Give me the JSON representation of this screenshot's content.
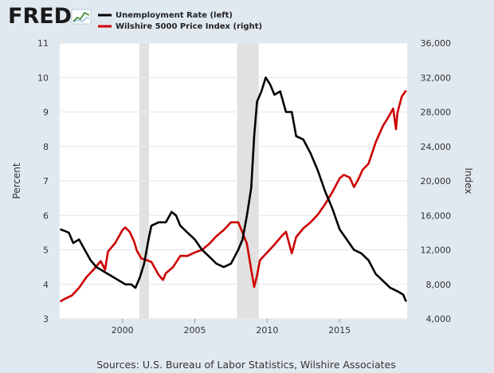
{
  "logo": {
    "text": "FRED"
  },
  "source": "Sources: U.S. Bureau of Labor Statistics, Wilshire Associates",
  "colors": {
    "background": "#e1e9f0",
    "plot": "#ffffff",
    "recession": "#e1e1e1",
    "unrate": "#000000",
    "wilshire": "#cc0000"
  },
  "chart_data": {
    "type": "line",
    "xlabel": "",
    "ylabel_left": "Percent",
    "ylabel_right": "Index",
    "x_range": [
      1995.67,
      2019.67
    ],
    "ylim_left": [
      3,
      11
    ],
    "ylim_right": [
      4000,
      36000
    ],
    "x_ticks": [
      "2000",
      "2005",
      "2010",
      "2015"
    ],
    "y_ticks_left": [
      "3",
      "4",
      "5",
      "6",
      "7",
      "8",
      "9",
      "10",
      "11"
    ],
    "y_ticks_right": [
      "4,000",
      "8,000",
      "12,000",
      "16,000",
      "20,000",
      "24,000",
      "28,000",
      "32,000",
      "36,000"
    ],
    "grid": true,
    "legend_position": "top",
    "recessions": [
      [
        2001.17,
        2001.83
      ],
      [
        2007.92,
        2009.42
      ]
    ],
    "series": [
      {
        "name": "Unemployment Rate (left)",
        "axis": "left",
        "color": "#000000",
        "x": [
          1995.7,
          1996.0,
          1996.3,
          1996.6,
          1997.0,
          1997.4,
          1997.8,
          1998.2,
          1998.6,
          1999.0,
          1999.4,
          1999.8,
          2000.2,
          2000.6,
          2000.9,
          2001.2,
          2001.5,
          2001.8,
          2002.0,
          2002.5,
          2003.0,
          2003.4,
          2003.7,
          2004.0,
          2004.5,
          2005.0,
          2005.5,
          2006.0,
          2006.5,
          2007.0,
          2007.5,
          2008.0,
          2008.3,
          2008.6,
          2008.9,
          2009.1,
          2009.3,
          2009.6,
          2009.9,
          2010.2,
          2010.5,
          2010.9,
          2011.3,
          2011.7,
          2012.0,
          2012.5,
          2013.0,
          2013.5,
          2014.0,
          2014.5,
          2015.0,
          2015.5,
          2016.0,
          2016.5,
          2017.0,
          2017.5,
          2018.0,
          2018.5,
          2019.0,
          2019.4,
          2019.6
        ],
        "y": [
          5.6,
          5.55,
          5.5,
          5.2,
          5.3,
          5.0,
          4.7,
          4.5,
          4.4,
          4.3,
          4.2,
          4.1,
          4.0,
          4.0,
          3.9,
          4.2,
          4.6,
          5.3,
          5.7,
          5.8,
          5.8,
          6.1,
          6.0,
          5.7,
          5.5,
          5.3,
          5.0,
          4.8,
          4.6,
          4.5,
          4.6,
          5.0,
          5.3,
          6.0,
          6.8,
          8.3,
          9.3,
          9.6,
          10.0,
          9.8,
          9.5,
          9.6,
          9.0,
          9.0,
          8.3,
          8.2,
          7.8,
          7.3,
          6.7,
          6.2,
          5.6,
          5.3,
          5.0,
          4.9,
          4.7,
          4.3,
          4.1,
          3.9,
          3.8,
          3.7,
          3.5
        ]
      },
      {
        "name": "Wilshire 5000 Price Index (right)",
        "axis": "right",
        "color": "#cc0000",
        "x": [
          1995.7,
          1996.0,
          1996.5,
          1997.0,
          1997.5,
          1998.0,
          1998.5,
          1998.8,
          1999.0,
          1999.5,
          2000.0,
          2000.2,
          2000.5,
          2000.8,
          2001.0,
          2001.3,
          2001.7,
          2002.0,
          2002.5,
          2002.8,
          2003.0,
          2003.5,
          2004.0,
          2004.5,
          2005.0,
          2005.5,
          2006.0,
          2006.5,
          2007.0,
          2007.5,
          2007.8,
          2008.0,
          2008.3,
          2008.6,
          2008.9,
          2009.1,
          2009.3,
          2009.5,
          2010.0,
          2010.5,
          2011.0,
          2011.3,
          2011.7,
          2012.0,
          2012.5,
          2013.0,
          2013.5,
          2014.0,
          2014.5,
          2015.0,
          2015.3,
          2015.7,
          2016.0,
          2016.3,
          2016.6,
          2017.0,
          2017.5,
          2018.0,
          2018.3,
          2018.7,
          2018.9,
          2019.0,
          2019.3,
          2019.6
        ],
        "y": [
          6000,
          6300,
          6700,
          7600,
          8800,
          9700,
          10700,
          9700,
          11800,
          12800,
          14300,
          14600,
          14100,
          13000,
          11900,
          11000,
          10800,
          10600,
          9100,
          8500,
          9300,
          10000,
          11300,
          11300,
          11700,
          12000,
          12700,
          13600,
          14300,
          15200,
          15200,
          15200,
          14000,
          12700,
          9700,
          7700,
          9000,
          10800,
          11700,
          12600,
          13600,
          14100,
          11600,
          13500,
          14500,
          15200,
          16100,
          17300,
          18700,
          20300,
          20700,
          20400,
          19300,
          20200,
          21300,
          22000,
          24500,
          26400,
          27200,
          28400,
          26000,
          27900,
          29800,
          30500
        ]
      }
    ]
  }
}
